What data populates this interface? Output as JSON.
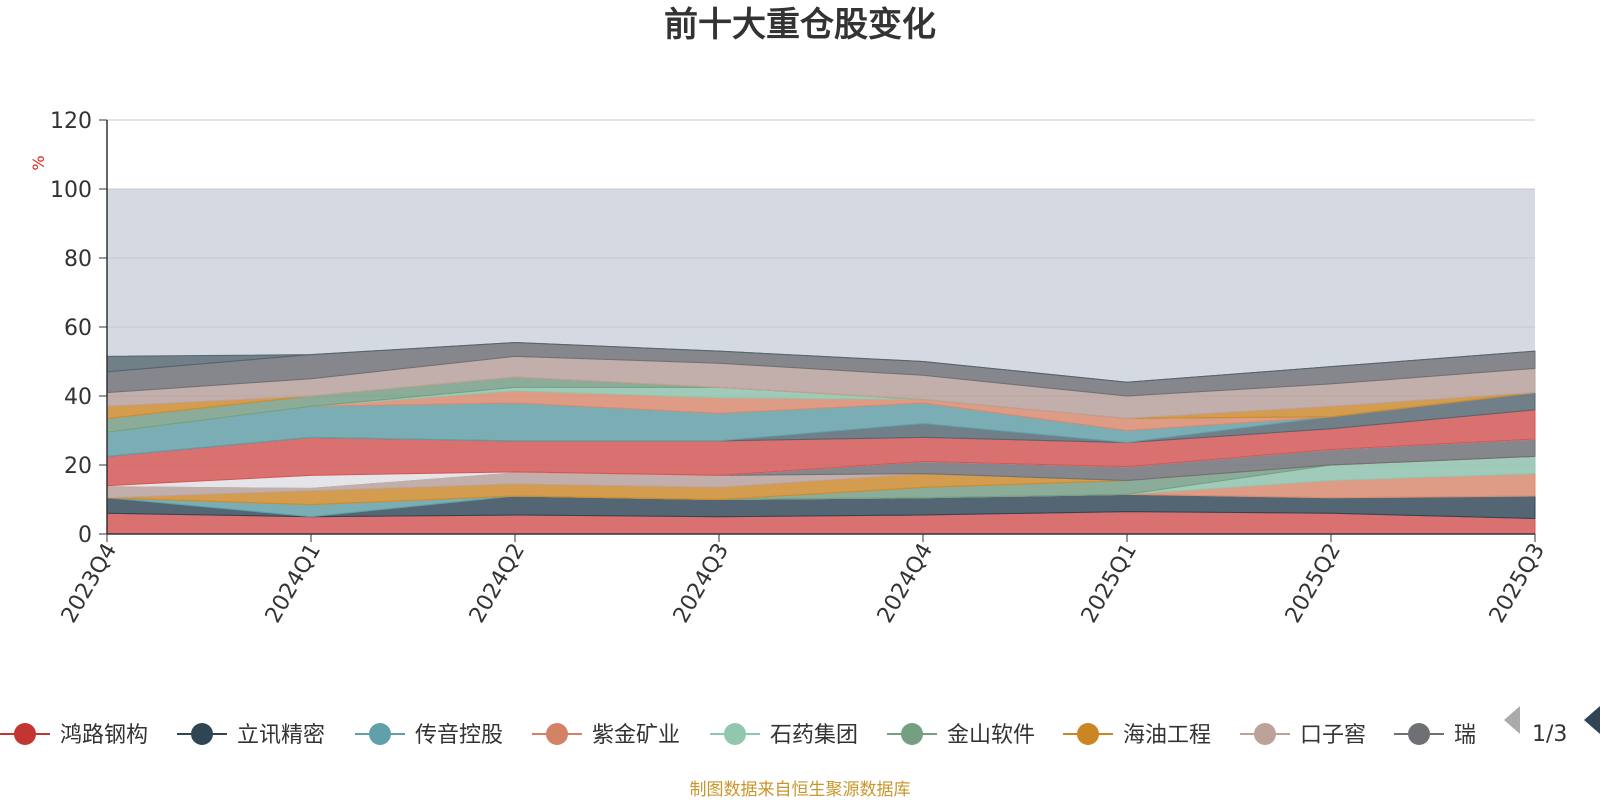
{
  "chart_data": {
    "type": "area",
    "stacked": true,
    "title": "前十大重仓股变化",
    "ylabel": "%",
    "ylim": [
      0,
      120
    ],
    "yticks": [
      "0",
      "20",
      "40",
      "60",
      "80",
      "100",
      "120"
    ],
    "categories": [
      "2023Q4",
      "2024Q1",
      "2024Q2",
      "2024Q3",
      "2024Q4",
      "2025Q1",
      "2025Q2",
      "2025Q3"
    ],
    "background_band": [
      0,
      100
    ],
    "grid": true,
    "source": "制图数据来自恒生聚源数据库",
    "legend": {
      "position": "bottom",
      "visible_items": [
        "鸿路钢构",
        "立讯精密",
        "传音控股",
        "紫金矿业",
        "石药集团",
        "金山软件",
        "海油工程",
        "口子窖",
        "瑞"
      ],
      "page": "1/3"
    },
    "series": [
      {
        "name": "鸿路钢构",
        "color": "#d9534f",
        "values": [
          6,
          5,
          5.5,
          5,
          5.5,
          6.5,
          6,
          4.5
        ]
      },
      {
        "name": "立讯精密",
        "color": "#2f4554",
        "values": [
          4.5,
          0,
          5.5,
          5,
          5,
          5,
          4.5,
          6.5
        ]
      },
      {
        "name": "传音控股",
        "color": "#61a0a8",
        "values": [
          0,
          3.5,
          0,
          0,
          0,
          0,
          0,
          0
        ]
      },
      {
        "name": "紫金矿业",
        "color": "#e08a6b",
        "values": [
          0,
          0,
          0,
          0,
          0,
          0,
          5,
          6.5
        ]
      },
      {
        "name": "石药集团",
        "color": "#91c7ae",
        "values": [
          0,
          0,
          0,
          0,
          0,
          0,
          4.5,
          5
        ]
      },
      {
        "name": "金山软件",
        "color": "#749f83",
        "values": [
          0,
          0,
          0,
          0,
          3,
          4,
          0,
          0
        ]
      },
      {
        "name": "海油工程",
        "color": "#d48b25",
        "values": [
          0,
          4,
          3.5,
          3.5,
          4,
          0,
          0,
          0
        ]
      },
      {
        "name": "口子窖",
        "color": "#bda29a",
        "values": [
          3.5,
          1,
          3.5,
          3.5,
          0,
          0,
          0,
          0
        ]
      },
      {
        "name": "",
        "color": "#6e7074",
        "values": [
          0,
          0,
          0,
          0,
          3.5,
          4,
          4.5,
          5
        ]
      },
      {
        "name": "",
        "color": "#e8e8ea",
        "values": [
          0,
          3.5,
          0,
          0,
          0,
          0,
          0,
          0
        ]
      },
      {
        "name": "",
        "color": "#d9534f",
        "values": [
          8.5,
          11,
          9,
          10,
          7,
          7,
          6,
          8.5
        ]
      },
      {
        "name": "",
        "color": "#546570",
        "values": [
          0,
          0,
          0,
          0,
          4,
          0,
          3.5,
          5
        ]
      },
      {
        "name": "",
        "color": "#61a0a8",
        "values": [
          7,
          9,
          11,
          8,
          6,
          3.5,
          0,
          0
        ]
      },
      {
        "name": "",
        "color": "#e08a6b",
        "values": [
          0,
          0,
          3.5,
          4.5,
          1,
          3.5,
          0,
          0
        ]
      },
      {
        "name": "",
        "color": "#91c7ae",
        "values": [
          0,
          0,
          1,
          3,
          0,
          0,
          0,
          0
        ]
      },
      {
        "name": "",
        "color": "#749f83",
        "values": [
          4,
          3,
          3,
          0,
          0,
          0,
          0,
          0
        ]
      },
      {
        "name": "",
        "color": "#d48b25",
        "values": [
          3.5,
          0,
          0,
          0,
          0,
          0,
          3,
          0
        ]
      },
      {
        "name": "",
        "color": "#bda29a",
        "values": [
          4,
          5,
          6,
          7,
          7,
          6.5,
          6.5,
          7
        ]
      },
      {
        "name": "",
        "color": "#6e7074",
        "values": [
          6,
          7,
          4,
          3.5,
          4,
          4,
          5,
          5
        ]
      },
      {
        "name": "",
        "color": "#546570",
        "values": [
          4.5,
          0,
          0,
          0,
          0,
          0,
          0,
          0
        ]
      }
    ]
  }
}
